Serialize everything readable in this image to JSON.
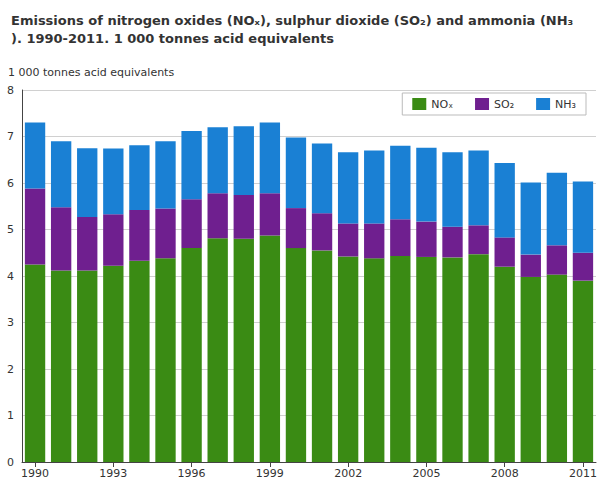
{
  "chart_data": {
    "type": "bar",
    "title": "Emissions of nitrogen oxides (NOₓ), sulphur dioxide (SO₂) and ammonia (NH₃). 1990-2011. 1 000 tonnes acid equivalents",
    "y_label": "1 000 tonnes acid equivalents",
    "categories": [
      "1990",
      null,
      null,
      "1993",
      null,
      null,
      "1996",
      null,
      null,
      "1999",
      null,
      null,
      "2002",
      null,
      null,
      "2005",
      null,
      null,
      "2008",
      null,
      null,
      "2011"
    ],
    "series": [
      {
        "name": "NOₓ",
        "color": "#3a8b14",
        "values": [
          4.25,
          4.12,
          4.12,
          4.22,
          4.33,
          4.38,
          4.6,
          4.81,
          4.8,
          4.87,
          4.6,
          4.55,
          4.42,
          4.38,
          4.43,
          4.41,
          4.4,
          4.47,
          4.2,
          3.98,
          4.03,
          3.9
        ]
      },
      {
        "name": "SO₂",
        "color": "#6f1f8f",
        "values": [
          1.63,
          1.36,
          1.15,
          1.11,
          1.09,
          1.07,
          1.05,
          0.97,
          0.94,
          0.91,
          0.86,
          0.8,
          0.71,
          0.75,
          0.79,
          0.76,
          0.66,
          0.62,
          0.63,
          0.48,
          0.63,
          0.6
        ]
      },
      {
        "name": "NH₃",
        "color": "#1a80d4",
        "values": [
          1.42,
          1.42,
          1.48,
          1.41,
          1.39,
          1.45,
          1.47,
          1.42,
          1.48,
          1.52,
          1.52,
          1.5,
          1.53,
          1.57,
          1.58,
          1.59,
          1.6,
          1.61,
          1.6,
          1.55,
          1.56,
          1.53
        ]
      }
    ],
    "ylim": [
      0,
      8
    ],
    "yticks": [
      0,
      1,
      2,
      3,
      4,
      5,
      6,
      7,
      8
    ],
    "stacked": true,
    "grid": true,
    "legend": "top-right",
    "data_labels": false
  }
}
